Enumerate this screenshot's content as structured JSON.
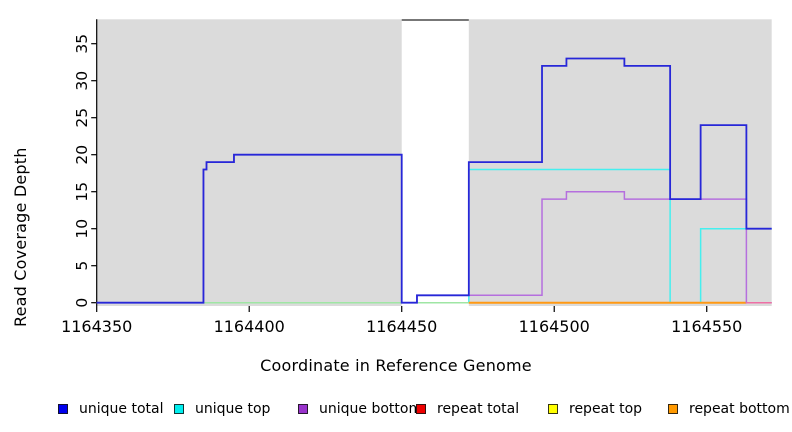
{
  "chart_data": {
    "type": "line",
    "subtype": "step-coverage",
    "title": "",
    "xlabel": "Coordinate in Reference Genome",
    "ylabel": "Read Coverage Depth",
    "xlim": [
      1164350,
      1164571.3
    ],
    "ylim": [
      0,
      38.3
    ],
    "grid": false,
    "x_ticks": [
      1164350,
      1164400,
      1164450,
      1164500,
      1164550
    ],
    "y_ticks": [
      0,
      5,
      10,
      15,
      20,
      25,
      30,
      35
    ],
    "background_regions": [
      {
        "name": "covered-region-1",
        "x0": 1164350,
        "x1": 1164450,
        "color": "#dbdbdb"
      },
      {
        "name": "covered-region-2",
        "x0": 1164472,
        "x1": 1164571.3,
        "color": "#dbdbdb"
      }
    ],
    "gap_top_edge": {
      "x0": 1164450,
      "x1": 1164472,
      "color": "#4a4a4a"
    },
    "series": [
      {
        "name": "unique top",
        "line_color": "#45efef",
        "width": 1.5,
        "end": 1164571.3,
        "points": [
          [
            1164350,
            0
          ],
          [
            1164472,
            18
          ],
          [
            1164538,
            0
          ],
          [
            1164548,
            10
          ]
        ]
      },
      {
        "name": "repeat top",
        "line_color": "#9fe6a4",
        "width": 1.5,
        "end": 1164571.3,
        "points": [
          [
            1164350,
            0
          ]
        ]
      },
      {
        "name": "repeat bottom",
        "line_color": "#ff9914",
        "width": 2,
        "end": 1164563,
        "points": [
          [
            1164472,
            0
          ]
        ]
      },
      {
        "name": "unique bottom",
        "line_color": "#b56fde",
        "width": 1.5,
        "end": 1164571.3,
        "points": [
          [
            1164350,
            0
          ],
          [
            1164385,
            18
          ],
          [
            1164386,
            19
          ],
          [
            1164395,
            20
          ],
          [
            1164450,
            0
          ],
          [
            1164455,
            1
          ],
          [
            1164496,
            14
          ],
          [
            1164504,
            15
          ],
          [
            1164523,
            14
          ],
          [
            1164563,
            0
          ]
        ]
      },
      {
        "name": "repeat total",
        "line_color": "#ee6fa5",
        "width": 1.5,
        "end": 1164571.3,
        "points": [
          [
            1164563,
            0
          ]
        ]
      },
      {
        "name": "unique total",
        "line_color": "#2727d8",
        "width": 1.8,
        "end": 1164571.3,
        "points": [
          [
            1164350,
            0
          ],
          [
            1164385,
            18
          ],
          [
            1164386,
            19
          ],
          [
            1164395,
            20
          ],
          [
            1164450,
            0
          ],
          [
            1164455,
            1
          ],
          [
            1164472,
            19
          ],
          [
            1164496,
            32
          ],
          [
            1164504,
            33
          ],
          [
            1164523,
            32
          ],
          [
            1164538,
            14
          ],
          [
            1164548,
            24
          ],
          [
            1164563,
            10
          ]
        ]
      }
    ],
    "legend_position": "bottom",
    "legend": [
      {
        "label": "unique total",
        "color": "#0000ee"
      },
      {
        "label": "unique top",
        "color": "#00eeee"
      },
      {
        "label": "unique bottom",
        "color": "#9933cc"
      },
      {
        "label": "repeat total",
        "color": "#ee0000"
      },
      {
        "label": "repeat top",
        "color": "#ffff00"
      },
      {
        "label": "repeat bottom",
        "color": "#ff9900"
      }
    ]
  },
  "labels": {
    "ylabel": "Read Coverage Depth",
    "xlabel": "Coordinate in Reference Genome"
  }
}
